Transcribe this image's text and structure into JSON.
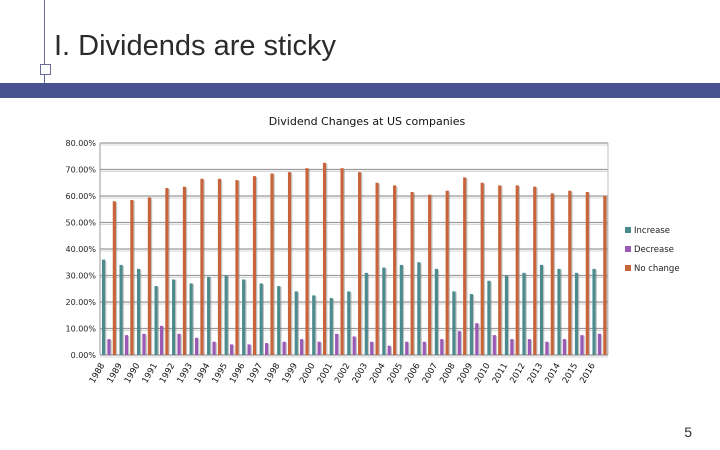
{
  "slide": {
    "title": "I. Dividends are sticky",
    "page_number": "5"
  },
  "colors": {
    "increase": "#4b8b8d",
    "decrease": "#9b59b6",
    "no_change": "#c8643a",
    "accent": "#4a5190"
  },
  "chart_data": {
    "type": "bar",
    "title": "Dividend Changes at US companies",
    "categories": [
      "1988",
      "1989",
      "1990",
      "1991",
      "1992",
      "1993",
      "1994",
      "1995",
      "1996",
      "1997",
      "1998",
      "1999",
      "2000",
      "2001",
      "2002",
      "2003",
      "2004",
      "2005",
      "2006",
      "2007",
      "2008",
      "2009",
      "2010",
      "2011",
      "2012",
      "2013",
      "2014",
      "2015",
      "2016"
    ],
    "series": [
      {
        "name": "Increase",
        "values": [
          36.0,
          34.0,
          32.5,
          26.0,
          28.5,
          27.0,
          29.5,
          30.0,
          28.5,
          27.0,
          26.0,
          24.0,
          22.5,
          21.5,
          24.0,
          31.0,
          33.0,
          34.0,
          35.0,
          32.5,
          24.0,
          23.0,
          28.0,
          30.0,
          31.0,
          34.0,
          32.5,
          31.0,
          32.5
        ]
      },
      {
        "name": "Decrease",
        "values": [
          6.0,
          7.5,
          8.0,
          11.0,
          8.0,
          6.5,
          5.0,
          4.0,
          4.0,
          4.5,
          5.0,
          6.0,
          5.0,
          8.0,
          7.0,
          5.0,
          3.5,
          5.0,
          5.0,
          6.0,
          9.0,
          12.0,
          7.5,
          6.0,
          6.0,
          5.0,
          6.0,
          7.5,
          8.0
        ]
      },
      {
        "name": "No change",
        "values": [
          58.0,
          58.5,
          59.5,
          63.0,
          63.5,
          66.5,
          66.5,
          66.0,
          67.5,
          68.5,
          69.0,
          70.5,
          72.5,
          70.5,
          69.0,
          65.0,
          64.0,
          61.5,
          60.5,
          62.0,
          67.0,
          65.0,
          64.0,
          64.0,
          63.5,
          61.0,
          62.0,
          61.5,
          60.0
        ]
      }
    ],
    "y_ticks": [
      "0.00%",
      "10.00%",
      "20.00%",
      "30.00%",
      "40.00%",
      "50.00%",
      "60.00%",
      "70.00%",
      "80.00%"
    ],
    "ylim": [
      0,
      80
    ],
    "legend_position": "right",
    "grid": true
  }
}
